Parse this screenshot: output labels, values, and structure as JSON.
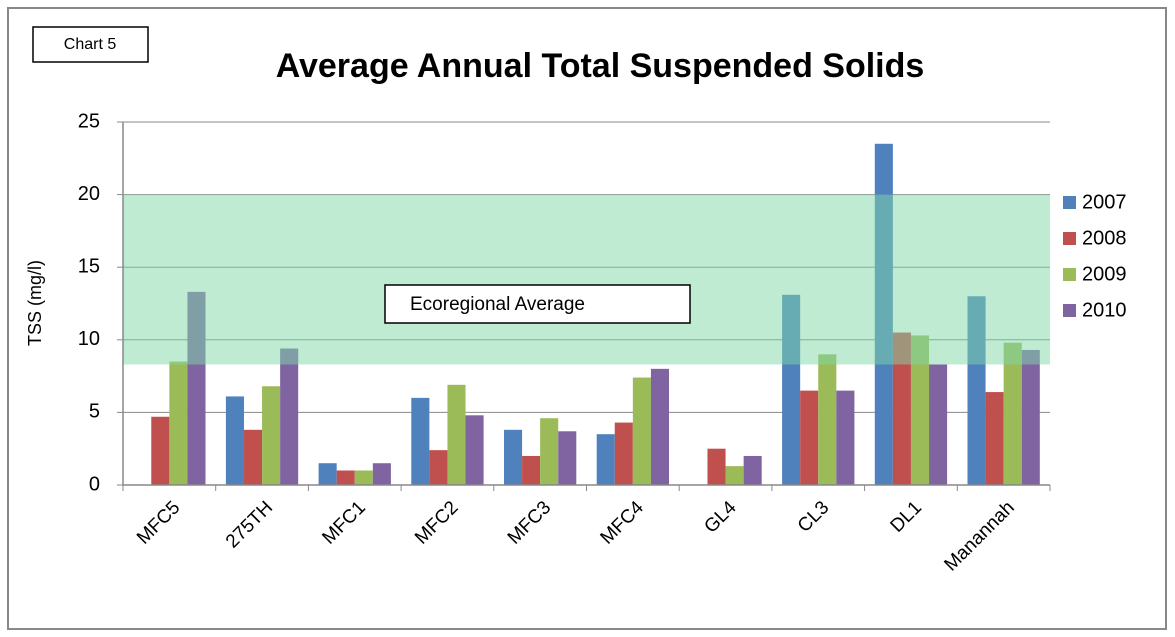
{
  "chart_data": {
    "type": "bar",
    "label": "Chart 5",
    "title": "Average Annual Total Suspended Solids",
    "y_label": "TSS (mg/l)",
    "categories": [
      "MFC5",
      "275TH",
      "MFC1",
      "MFC2",
      "MFC3",
      "MFC4",
      "GL4",
      "CL3",
      "DL1",
      "Manannah"
    ],
    "series": [
      {
        "name": "2007",
        "color": "#4f81bd",
        "values": [
          null,
          6.1,
          1.5,
          6.0,
          3.8,
          3.5,
          null,
          13.1,
          23.5,
          13.0
        ]
      },
      {
        "name": "2008",
        "color": "#c0504d",
        "values": [
          4.7,
          3.8,
          1.0,
          2.4,
          2.0,
          4.3,
          2.5,
          6.5,
          10.5,
          6.4
        ]
      },
      {
        "name": "2009",
        "color": "#9bbb59",
        "values": [
          8.5,
          6.8,
          1.0,
          6.9,
          4.6,
          7.4,
          1.3,
          9.0,
          10.3,
          9.8
        ]
      },
      {
        "name": "2010",
        "color": "#8064a2",
        "values": [
          13.3,
          9.4,
          1.5,
          4.8,
          3.7,
          8.0,
          2.0,
          6.5,
          8.3,
          9.3
        ]
      }
    ],
    "band": {
      "label": "Ecoregional Average",
      "range": [
        8.3,
        20
      ],
      "color": "#7fd8a8"
    },
    "ylim": [
      0,
      25
    ],
    "yticks": [
      0,
      5,
      10,
      15,
      20,
      25
    ],
    "grid": true,
    "legend": "right"
  }
}
